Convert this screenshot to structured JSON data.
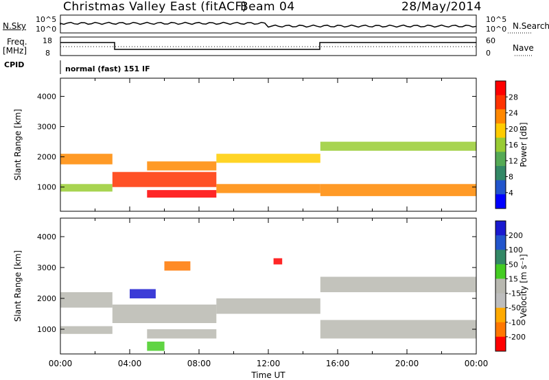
{
  "header": {
    "radar": "Christmas Valley East (fitACF)",
    "beam": "Beam 04",
    "date": "28/May/2014"
  },
  "colors": {
    "trace": "#000000",
    "power_scale": [
      "#0000ff",
      "#2255cc",
      "#338866",
      "#55aa55",
      "#99cc33",
      "#ffcc00",
      "#ff8800",
      "#ff3300",
      "#ff0000"
    ],
    "velocity_scale": [
      "#1a1ad0",
      "#2255cc",
      "#338866",
      "#44cc22",
      "#b8b8b0",
      "#bdbdbd",
      "#ffaa00",
      "#ff7700",
      "#ff0000"
    ]
  },
  "top_panels": {
    "nsky": {
      "label": "N.Sky",
      "ticks": [
        "10^5",
        "10^0"
      ]
    },
    "nsearch": {
      "label": "N.Search",
      "ticks": [
        "10^5",
        "10^0"
      ]
    },
    "freq": {
      "label_line1": "Freq.",
      "label_line2": "[MHz]",
      "ticks": [
        "18",
        "8"
      ]
    },
    "nave": {
      "label": "Nave",
      "ticks": [
        "60",
        "0"
      ]
    },
    "cpid": {
      "label": "CPID",
      "value": "normal (fast) 151 IF"
    }
  },
  "chart_data": [
    {
      "type": "heatmap",
      "title": "",
      "ylabel": "Slant Range [km]",
      "xlabel": "",
      "x_range": [
        0,
        24
      ],
      "ylim": [
        200,
        4600
      ],
      "y_ticks": [
        "4000",
        "3000",
        "2000",
        "1000"
      ],
      "colorbar": {
        "label": "Power [dB]",
        "ticks": [
          "28",
          "24",
          "20",
          "16",
          "12",
          "8",
          "4"
        ],
        "range": [
          0,
          30
        ]
      },
      "bands": [
        {
          "x": [
            0,
            3
          ],
          "y": [
            1750,
            2100
          ],
          "level": 22
        },
        {
          "x": [
            0,
            3
          ],
          "y": [
            850,
            1100
          ],
          "level": 16
        },
        {
          "x": [
            3,
            9
          ],
          "y": [
            1000,
            1500
          ],
          "level": 26
        },
        {
          "x": [
            5,
            9
          ],
          "y": [
            1550,
            1850
          ],
          "level": 22
        },
        {
          "x": [
            5,
            9
          ],
          "y": [
            650,
            900
          ],
          "level": 28
        },
        {
          "x": [
            9,
            15
          ],
          "y": [
            1800,
            2100
          ],
          "level": 18
        },
        {
          "x": [
            9,
            15
          ],
          "y": [
            800,
            1100
          ],
          "level": 20
        },
        {
          "x": [
            15,
            24
          ],
          "y": [
            700,
            1100
          ],
          "level": 22
        },
        {
          "x": [
            15,
            24
          ],
          "y": [
            2200,
            2500
          ],
          "level": 14
        }
      ]
    },
    {
      "type": "heatmap",
      "title": "",
      "ylabel": "Slant Range [km]",
      "xlabel": "Time UT",
      "x_ticks": [
        "00:00",
        "04:00",
        "08:00",
        "12:00",
        "16:00",
        "20:00",
        "00:00"
      ],
      "x_range": [
        0,
        24
      ],
      "ylim": [
        200,
        4600
      ],
      "y_ticks": [
        "4000",
        "3000",
        "2000",
        "1000"
      ],
      "colorbar": {
        "label": "Velocity [m s⁻¹]",
        "ticks": [
          "200",
          "100",
          "50",
          "15",
          "-15",
          "-50",
          "-100",
          "-200"
        ],
        "range": [
          -250,
          250
        ]
      },
      "bands": [
        {
          "x": [
            0,
            3
          ],
          "y": [
            1700,
            2200
          ],
          "level": 0
        },
        {
          "x": [
            0,
            3
          ],
          "y": [
            850,
            1100
          ],
          "level": 0
        },
        {
          "x": [
            3,
            9
          ],
          "y": [
            1200,
            1800
          ],
          "level": 0
        },
        {
          "x": [
            5,
            9
          ],
          "y": [
            700,
            1000
          ],
          "level": 0
        },
        {
          "x": [
            9,
            15
          ],
          "y": [
            1500,
            2000
          ],
          "level": 0
        },
        {
          "x": [
            15,
            24
          ],
          "y": [
            700,
            1300
          ],
          "level": 0
        },
        {
          "x": [
            15,
            24
          ],
          "y": [
            2200,
            2700
          ],
          "level": 0
        },
        {
          "x": [
            4,
            5.5
          ],
          "y": [
            2000,
            2300
          ],
          "level": 220
        },
        {
          "x": [
            6,
            7.5
          ],
          "y": [
            2900,
            3200
          ],
          "level": -150
        },
        {
          "x": [
            5,
            6
          ],
          "y": [
            300,
            600
          ],
          "level": 30
        },
        {
          "x": [
            12.3,
            12.8
          ],
          "y": [
            3100,
            3300
          ],
          "level": -220
        }
      ]
    }
  ]
}
